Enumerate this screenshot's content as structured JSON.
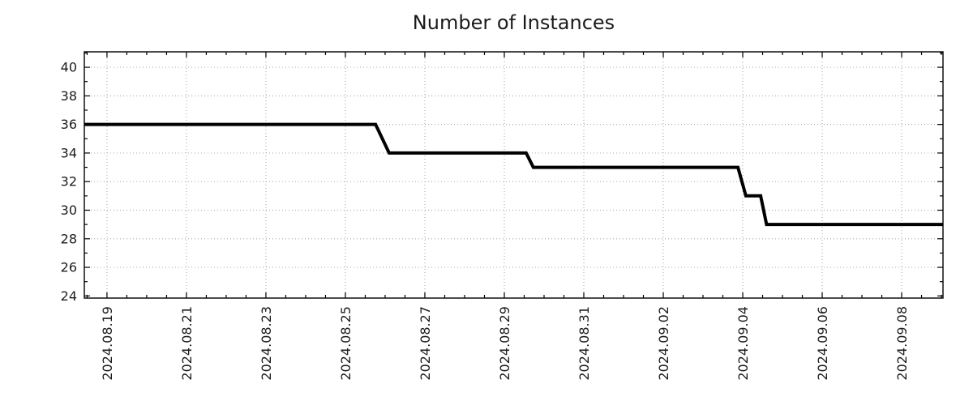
{
  "colors": {
    "background": "#ffffff",
    "line": "#000000",
    "grid": "#b0b0b0",
    "axis": "#000000",
    "text": "#1c1c1c"
  },
  "chart_data": {
    "type": "line",
    "line_style": "step",
    "title": "Number of Instances",
    "xlabel": "",
    "ylabel": "",
    "legend": false,
    "grid": {
      "major": true,
      "style": "dotted"
    },
    "x_axis": {
      "unit": "days since 2024-08-19 00:00",
      "lim_days": [
        -0.57,
        21.04
      ],
      "major_tick_days": [
        0,
        2,
        4,
        6,
        8,
        10,
        12,
        14,
        16,
        18,
        20
      ],
      "tick_labels": [
        "2024.08.19",
        "2024.08.21",
        "2024.08.23",
        "2024.08.25",
        "2024.08.27",
        "2024.08.29",
        "2024.08.31",
        "2024.09.02",
        "2024.09.04",
        "2024.09.06",
        "2024.09.08"
      ],
      "minor_step_days": 0.5
    },
    "y_axis": {
      "lim": [
        23.85,
        41.08
      ],
      "major_ticks": [
        24,
        26,
        28,
        30,
        32,
        34,
        36,
        38,
        40
      ],
      "minor_step": 1
    },
    "series": [
      {
        "name": "Number of Instances",
        "color": "#000000",
        "width": 4,
        "x_unit": "days since 2024-08-19",
        "points": [
          [
            -0.57,
            36
          ],
          [
            6.76,
            36
          ],
          [
            7.1,
            34
          ],
          [
            10.55,
            34
          ],
          [
            10.73,
            33
          ],
          [
            15.88,
            33
          ],
          [
            16.08,
            31
          ],
          [
            16.45,
            31
          ],
          [
            16.6,
            29
          ],
          [
            21.04,
            29
          ]
        ],
        "step_summary": [
          {
            "value": 36,
            "until": "2024.08.26"
          },
          {
            "value": 34,
            "until": "2024.08.29"
          },
          {
            "value": 33,
            "until": "2024.09.04"
          },
          {
            "value": 31,
            "until": "2024.09.04"
          },
          {
            "value": 29,
            "until": "end"
          }
        ]
      }
    ]
  }
}
